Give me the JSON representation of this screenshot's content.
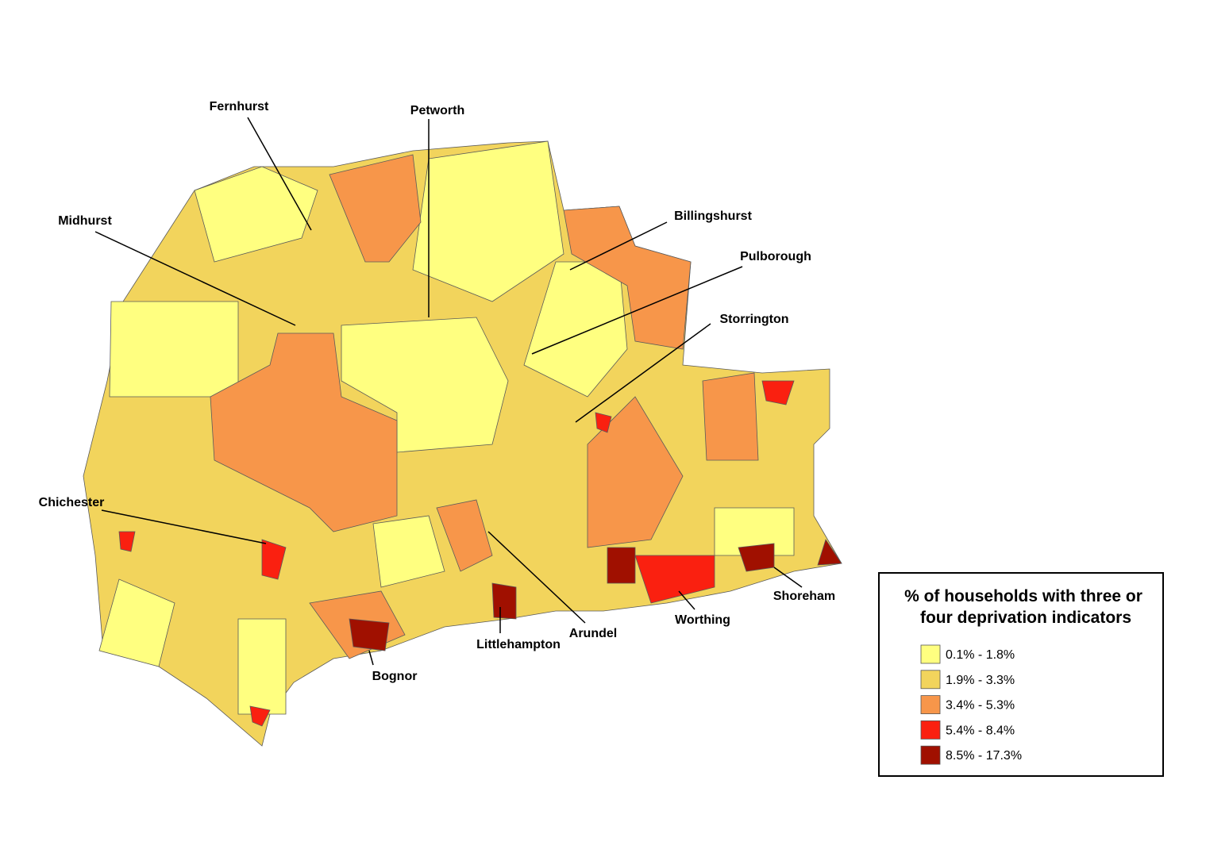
{
  "places": [
    {
      "label": "Fernhurst"
    },
    {
      "label": "Petworth"
    },
    {
      "label": "Midhurst"
    },
    {
      "label": "Billingshurst"
    },
    {
      "label": "Pulborough"
    },
    {
      "label": "Storrington"
    },
    {
      "label": "Chichester"
    },
    {
      "label": "Arundel"
    },
    {
      "label": "Littlehampton"
    },
    {
      "label": "Worthing"
    },
    {
      "label": "Shoreham"
    },
    {
      "label": "Bognor"
    }
  ],
  "legend": {
    "title_lines": [
      "% of households with three or",
      "four deprivation indicators"
    ],
    "items": [
      {
        "label": "0.1% - 1.8%",
        "color": "#ffff80"
      },
      {
        "label": "1.9% - 3.3%",
        "color": "#f2d45c"
      },
      {
        "label": "3.4% - 5.3%",
        "color": "#f7964a"
      },
      {
        "label": "5.4% - 8.4%",
        "color": "#fa2010"
      },
      {
        "label": "8.5% - 17.3%",
        "color": "#a01000"
      }
    ]
  }
}
